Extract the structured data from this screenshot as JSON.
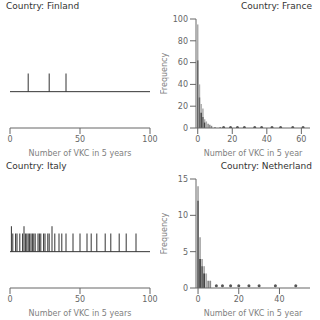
{
  "chart_data": [
    {
      "type": "strip",
      "title": "Country: Finland",
      "xlabel": "Number of VKC in 5 years",
      "xlim": [
        0,
        100
      ],
      "ylim": [
        -0.5,
        1.0
      ],
      "xticks": [
        0,
        50,
        100
      ],
      "tick_labels": "x",
      "x": [
        13,
        28,
        40
      ],
      "values": [
        0.25,
        0.25,
        0.25
      ],
      "color": "#333333"
    },
    {
      "type": "bar",
      "title": "Country: France",
      "xlabel": "Number of VKC in 5 year",
      "ylabel": "Frequency",
      "xlim": [
        -1,
        65
      ],
      "ylim": [
        0,
        100
      ],
      "xticks": [
        0,
        20,
        40,
        60
      ],
      "yticks": [
        0,
        20,
        40,
        60,
        80,
        100
      ],
      "series": [
        {
          "type": "bar",
          "x": [
            0,
            0,
            1,
            1,
            2,
            2,
            3,
            3,
            4,
            4,
            5,
            6,
            7,
            8,
            10,
            13
          ],
          "values": [
            95,
            62,
            40,
            28,
            22,
            14,
            18,
            10,
            8,
            5,
            6,
            4,
            3,
            2,
            1,
            1
          ],
          "colors": [
            "#aaaaaa",
            "#666666",
            "#aaaaaa",
            "#666666",
            "#aaaaaa",
            "#444444",
            "#aaaaaa",
            "#666666",
            "#aaaaaa",
            "#444444",
            "#aaaaaa",
            "#888888",
            "#888888",
            "#888888",
            "#888888",
            "#888888"
          ]
        },
        {
          "type": "scatter",
          "x": [
            15,
            19,
            23,
            27,
            33,
            37,
            43,
            48,
            55,
            61
          ],
          "values": [
            0.5,
            0.5,
            0.5,
            0.5,
            0.5,
            0.5,
            0.5,
            0.5,
            0.5,
            0.5
          ],
          "color": "#555555"
        }
      ]
    },
    {
      "type": "strip",
      "title": "Country: Italy",
      "xlabel": "Number of VKC in 5 years",
      "xlim": [
        0,
        100
      ],
      "ylim": [
        -0.5,
        1.0
      ],
      "xticks": [
        0,
        50,
        100
      ],
      "tick_labels": "x",
      "x": [
        1,
        2,
        4,
        5,
        7,
        9,
        10,
        11,
        12,
        13,
        14,
        15,
        16,
        17,
        18,
        20,
        21,
        22,
        24,
        25,
        27,
        28,
        30,
        32,
        35,
        37,
        40,
        45,
        50,
        55,
        58,
        62,
        68,
        72,
        78,
        83,
        90
      ],
      "values": [
        0.35,
        0.25,
        0.25,
        0.25,
        0.25,
        0.25,
        0.35,
        0.25,
        0.25,
        0.25,
        0.25,
        0.25,
        0.25,
        0.25,
        0.25,
        0.25,
        0.25,
        0.25,
        0.25,
        0.25,
        0.25,
        0.25,
        0.35,
        0.25,
        0.25,
        0.25,
        0.25,
        0.25,
        0.25,
        0.25,
        0.25,
        0.25,
        0.25,
        0.25,
        0.25,
        0.25,
        0.25
      ],
      "color": "#333333"
    },
    {
      "type": "bar",
      "title": "Country: Netherland",
      "xlabel": "Number of VKC in 5 year",
      "ylabel": "Frequency",
      "xlim": [
        -1,
        55
      ],
      "ylim": [
        0,
        15
      ],
      "xticks": [
        0,
        20,
        40
      ],
      "yticks": [
        0,
        5,
        10,
        15
      ],
      "series": [
        {
          "type": "bar",
          "x": [
            0,
            0,
            1,
            1,
            2,
            2,
            3,
            3,
            4,
            5,
            6
          ],
          "values": [
            14,
            12,
            7,
            4,
            4,
            3,
            3,
            2,
            2,
            1,
            1
          ],
          "colors": [
            "#aaaaaa",
            "#666666",
            "#aaaaaa",
            "#444444",
            "#aaaaaa",
            "#666666",
            "#aaaaaa",
            "#444444",
            "#aaaaaa",
            "#888888",
            "#888888"
          ]
        },
        {
          "type": "scatter",
          "x": [
            9,
            12,
            16,
            20,
            25,
            30,
            38,
            48
          ],
          "values": [
            0.3,
            0.3,
            0.3,
            0.3,
            0.3,
            0.3,
            0.3,
            0.3
          ],
          "color": "#555555"
        }
      ]
    }
  ]
}
